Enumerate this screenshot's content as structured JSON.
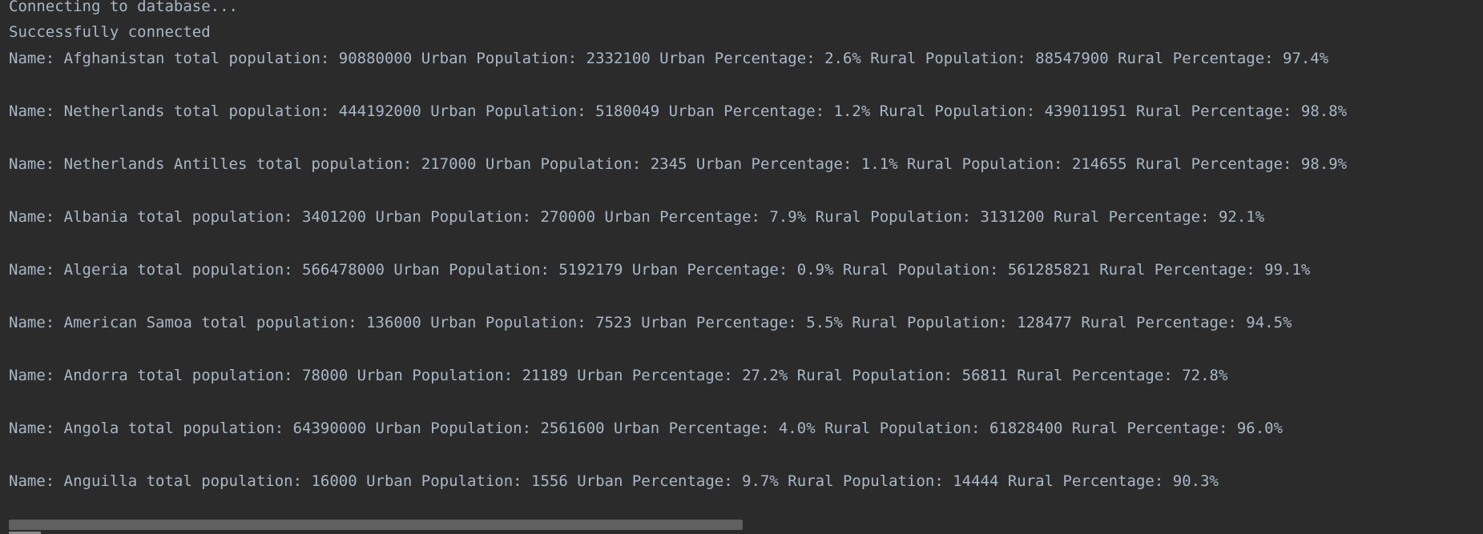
{
  "console": {
    "lines": [
      "Connecting to database...",
      "Successfully connected",
      "Name: Afghanistan total population: 90880000 Urban Population: 2332100 Urban Percentage: 2.6% Rural Population: 88547900 Rural Percentage: 97.4%",
      "Name: Netherlands total population: 444192000 Urban Population: 5180049 Urban Percentage: 1.2% Rural Population: 439011951 Rural Percentage: 98.8%",
      "Name: Netherlands Antilles total population: 217000 Urban Population: 2345 Urban Percentage: 1.1% Rural Population: 214655 Rural Percentage: 98.9%",
      "Name: Albania total population: 3401200 Urban Population: 270000 Urban Percentage: 7.9% Rural Population: 3131200 Rural Percentage: 92.1%",
      "Name: Algeria total population: 566478000 Urban Population: 5192179 Urban Percentage: 0.9% Rural Population: 561285821 Rural Percentage: 99.1%",
      "Name: American Samoa total population: 136000 Urban Population: 7523 Urban Percentage: 5.5% Rural Population: 128477 Rural Percentage: 94.5%",
      "Name: Andorra total population: 78000 Urban Population: 21189 Urban Percentage: 27.2% Rural Population: 56811 Rural Percentage: 72.8%",
      "Name: Angola total population: 64390000 Urban Population: 2561600 Urban Percentage: 4.0% Rural Population: 61828400 Rural Percentage: 96.0%",
      "Name: Anguilla total population: 16000 Urban Population: 1556 Urban Percentage: 9.7% Rural Population: 14444 Rural Percentage: 90.3%"
    ]
  },
  "colors": {
    "background": "#2b2b2b",
    "text": "#a9b7c6"
  }
}
